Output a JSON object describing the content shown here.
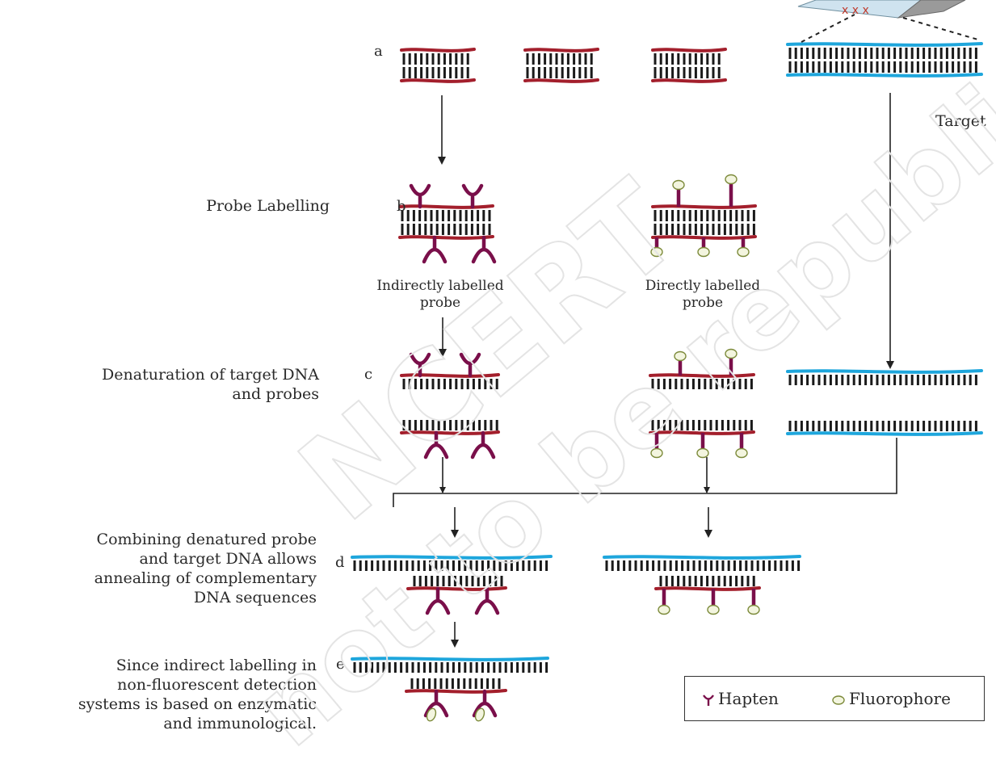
{
  "steps": {
    "a": "a",
    "b": "b",
    "c": "c",
    "d": "d",
    "e": "e"
  },
  "side_labels": {
    "probe_labelling": "Probe Labelling",
    "denaturation_1": "Denaturation of target DNA",
    "denaturation_2": "and probes",
    "combining_1": "Combining denatured probe",
    "combining_2": "and target DNA allows",
    "combining_3": "annealing of complementary",
    "combining_4": "DNA sequences",
    "indirect_1": "Since indirect labelling in",
    "indirect_2": "non-fluorescent detection",
    "indirect_3": "systems is based on enzymatic",
    "indirect_4": "and immunological."
  },
  "captions": {
    "target": "Target",
    "indirect_probe_1": "Indirectly labelled",
    "indirect_probe_2": "probe",
    "direct_probe_1": "Directly labelled",
    "direct_probe_2": "probe"
  },
  "legend": {
    "hapten": "Hapten",
    "fluorophore": "Fluorophore"
  },
  "watermark": {
    "line1": "NCERT",
    "line2": "not to be republished"
  },
  "colors": {
    "probe_strand": "#a31f2c",
    "target_strand": "#1ea6dc",
    "hapten": "#7a0f4a",
    "fluorophore_fill": "#f3f5df",
    "fluorophore_stroke": "#7c8a3a",
    "arrow": "#222222"
  },
  "icons": {
    "hapten": "hapten-icon",
    "fluorophore": "fluorophore-icon",
    "slide": "microscope-slide-icon"
  }
}
